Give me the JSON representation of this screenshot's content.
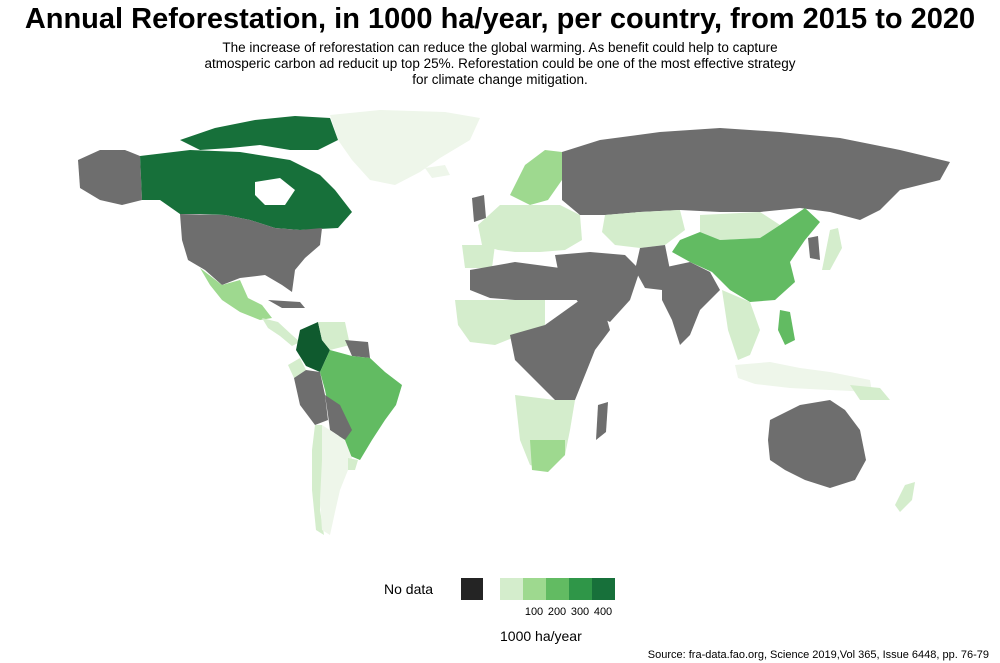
{
  "title": "Annual Reforestation, in 1000 ha/year, per country, from 2015 to 2020",
  "subtitle": "The increase of reforestation can reduce the global warming. As benefit could help to capture atmosperic carbon ad reducit up top 25%. Reforestation could be one of the most effective strategy for climate change mitigation.",
  "legend": {
    "no_data_label": "No data",
    "title": "1000 ha/year",
    "ticks": [
      "100",
      "200",
      "300",
      "400"
    ],
    "colors": {
      "no_data": "#242424",
      "no_data_map": "#6e6e6e",
      "bins": [
        "#d4edcc",
        "#9ed98f",
        "#62bb62",
        "#2f9648",
        "#17703a"
      ],
      "darkest": "#0f5a2e",
      "lowest": "#eef6ea"
    }
  },
  "source": "Source: fra-data.fao.org, Science 2019,Vol 365, Issue 6448, pp. 76-79",
  "regions": [
    {
      "name": "Canada",
      "level": "dark-green"
    },
    {
      "name": "Colombia",
      "level": "darkest-green"
    },
    {
      "name": "Brazil",
      "level": "medium-green"
    },
    {
      "name": "China",
      "level": "medium-green"
    },
    {
      "name": "Greenland",
      "level": "very-light-green"
    },
    {
      "name": "United States",
      "level": "no-data"
    },
    {
      "name": "Russia",
      "level": "no-data"
    },
    {
      "name": "Australia",
      "level": "no-data"
    },
    {
      "name": "India",
      "level": "no-data"
    }
  ]
}
